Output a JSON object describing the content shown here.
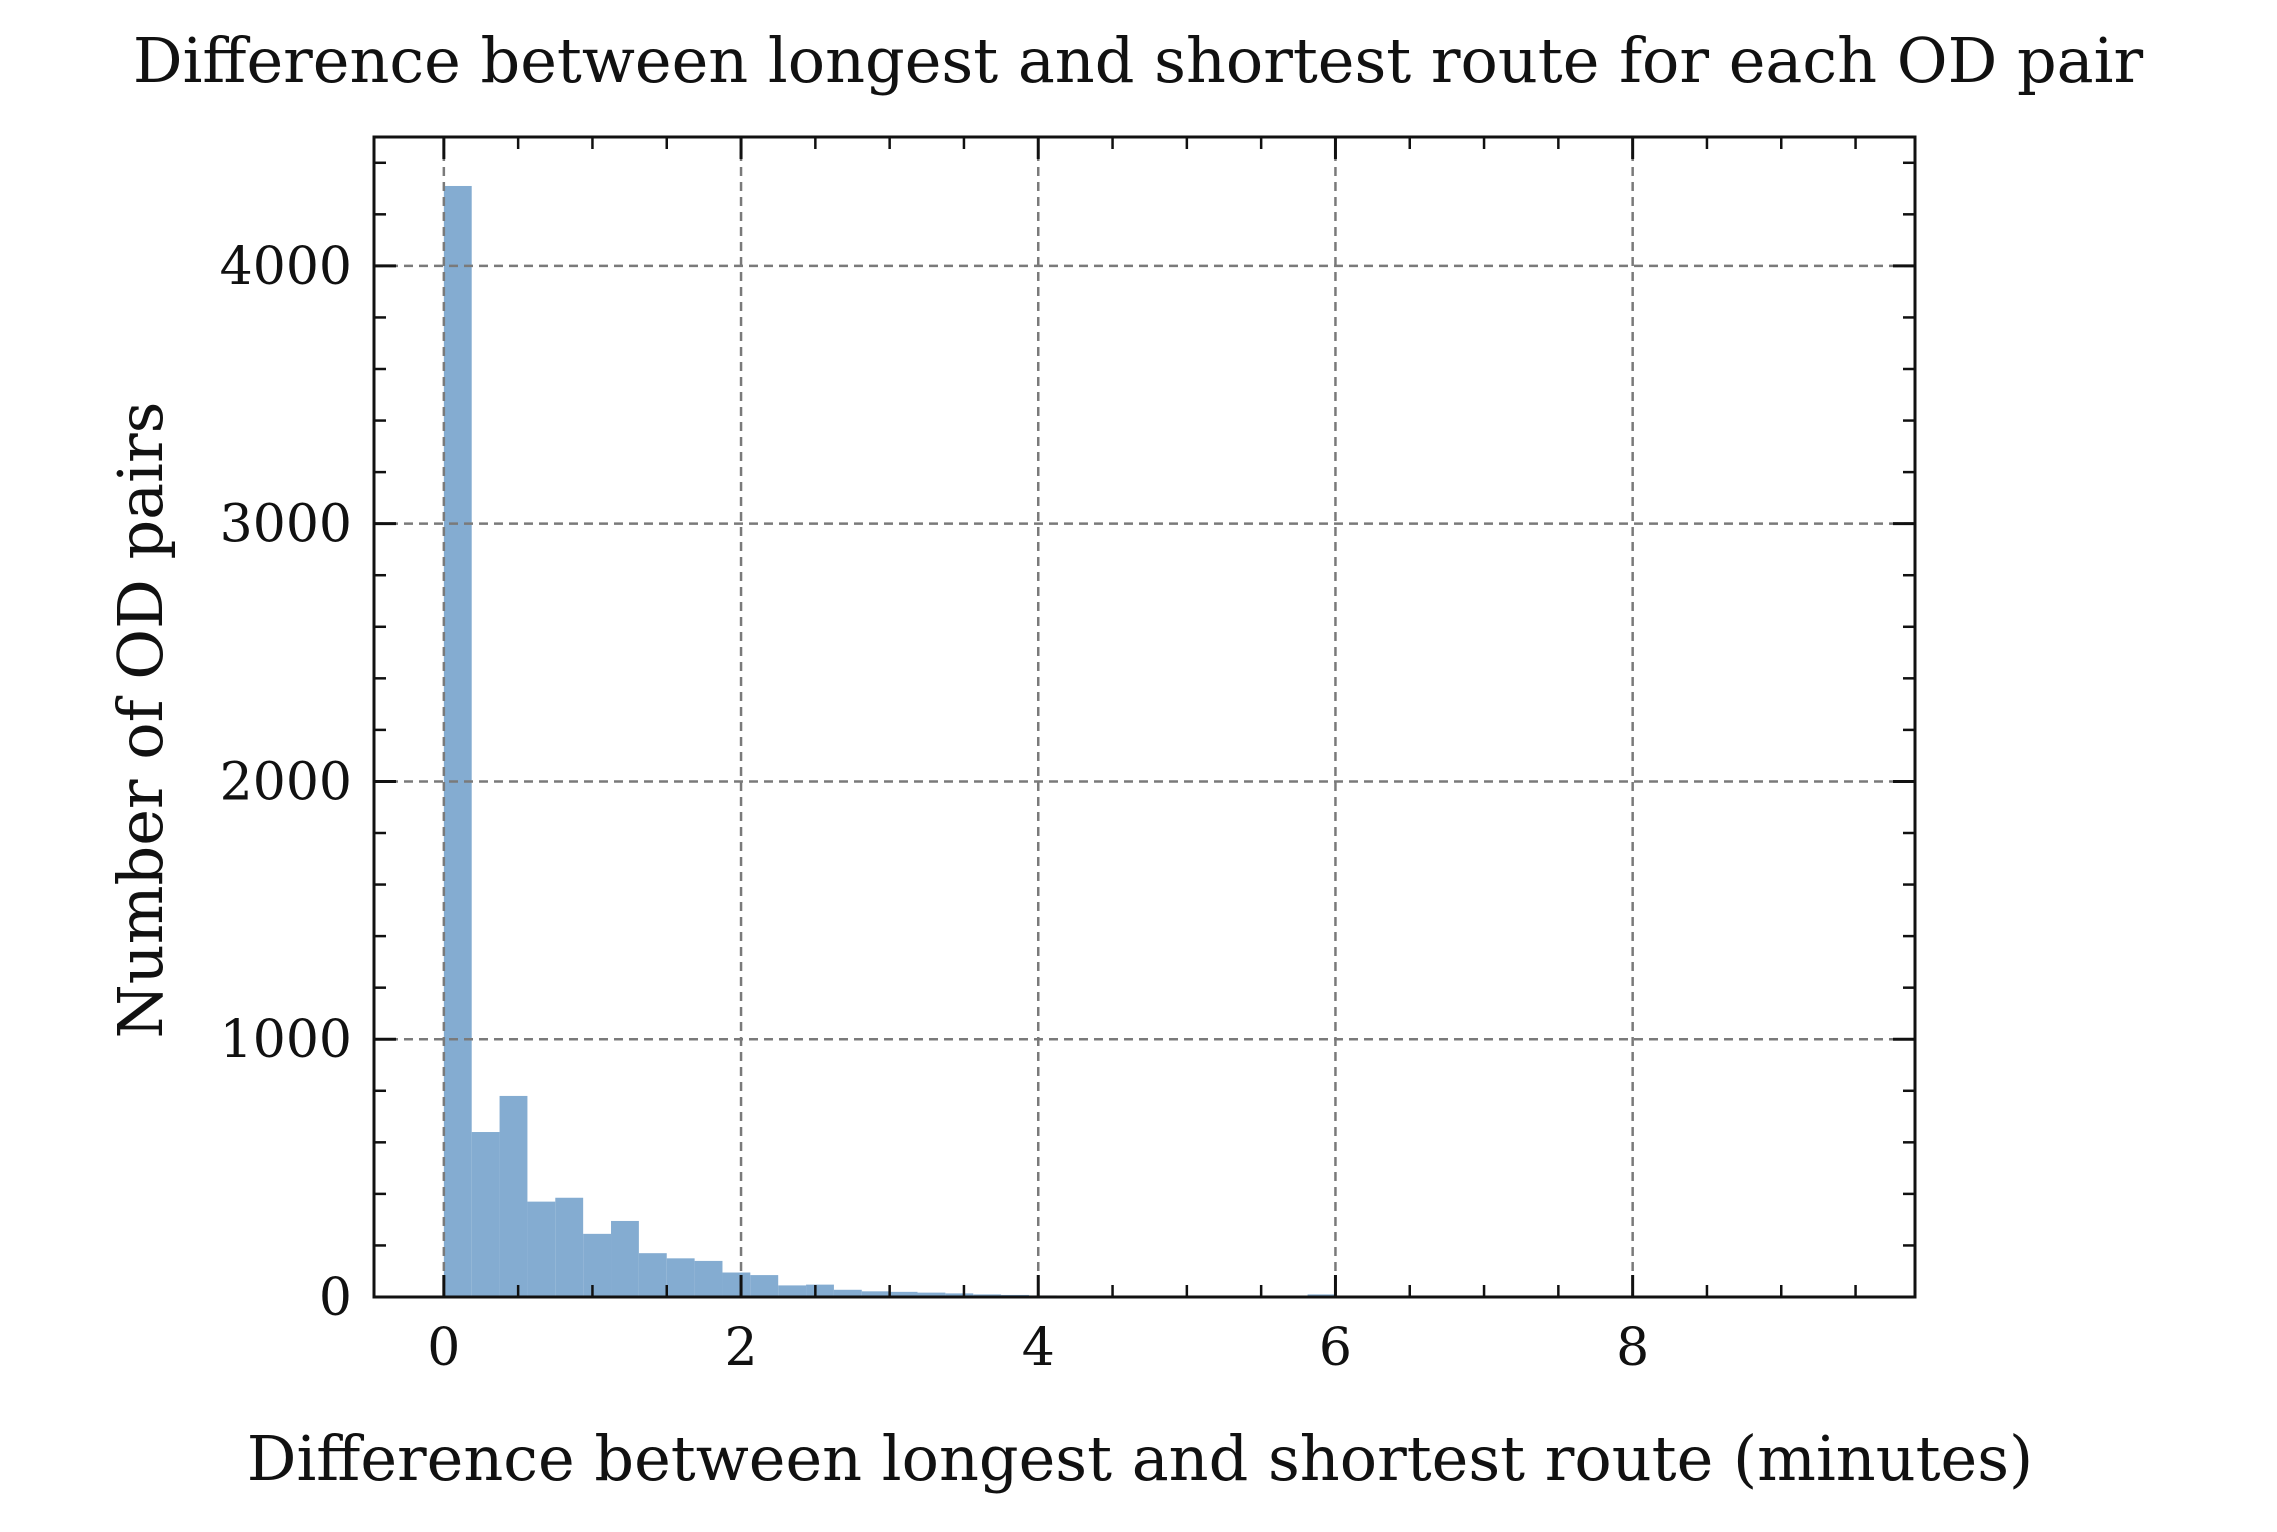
{
  "chart_data": {
    "type": "bar",
    "title": "Difference between longest and shortest route for each OD pair",
    "xlabel": "Difference between longest and shortest route (minutes)",
    "ylabel": "Number of OD pairs",
    "xlim": [
      -0.47,
      9.9
    ],
    "ylim": [
      0,
      4500
    ],
    "xticks": [
      0,
      2,
      4,
      6,
      8
    ],
    "yticks": [
      0,
      1000,
      2000,
      3000,
      4000
    ],
    "x_tick_labels": [
      "0",
      "2",
      "4",
      "6",
      "8"
    ],
    "y_tick_labels": [
      "0",
      "1000",
      "2000",
      "3000",
      "4000"
    ],
    "grid": true,
    "bar_color": "#84acd1",
    "bin_width": 0.1875,
    "bin_start": 0,
    "series": [
      {
        "values": [
          4310,
          640,
          780,
          370,
          385,
          245,
          295,
          170,
          150,
          140,
          95,
          85,
          45,
          48,
          28,
          22,
          20,
          17,
          14,
          10,
          8,
          6,
          5,
          5,
          4,
          4,
          3,
          3,
          3,
          2,
          2,
          10,
          2,
          2,
          1,
          1,
          1,
          1,
          1,
          1,
          1,
          1,
          1,
          1,
          1,
          1,
          1,
          1,
          1,
          1
        ]
      }
    ]
  }
}
